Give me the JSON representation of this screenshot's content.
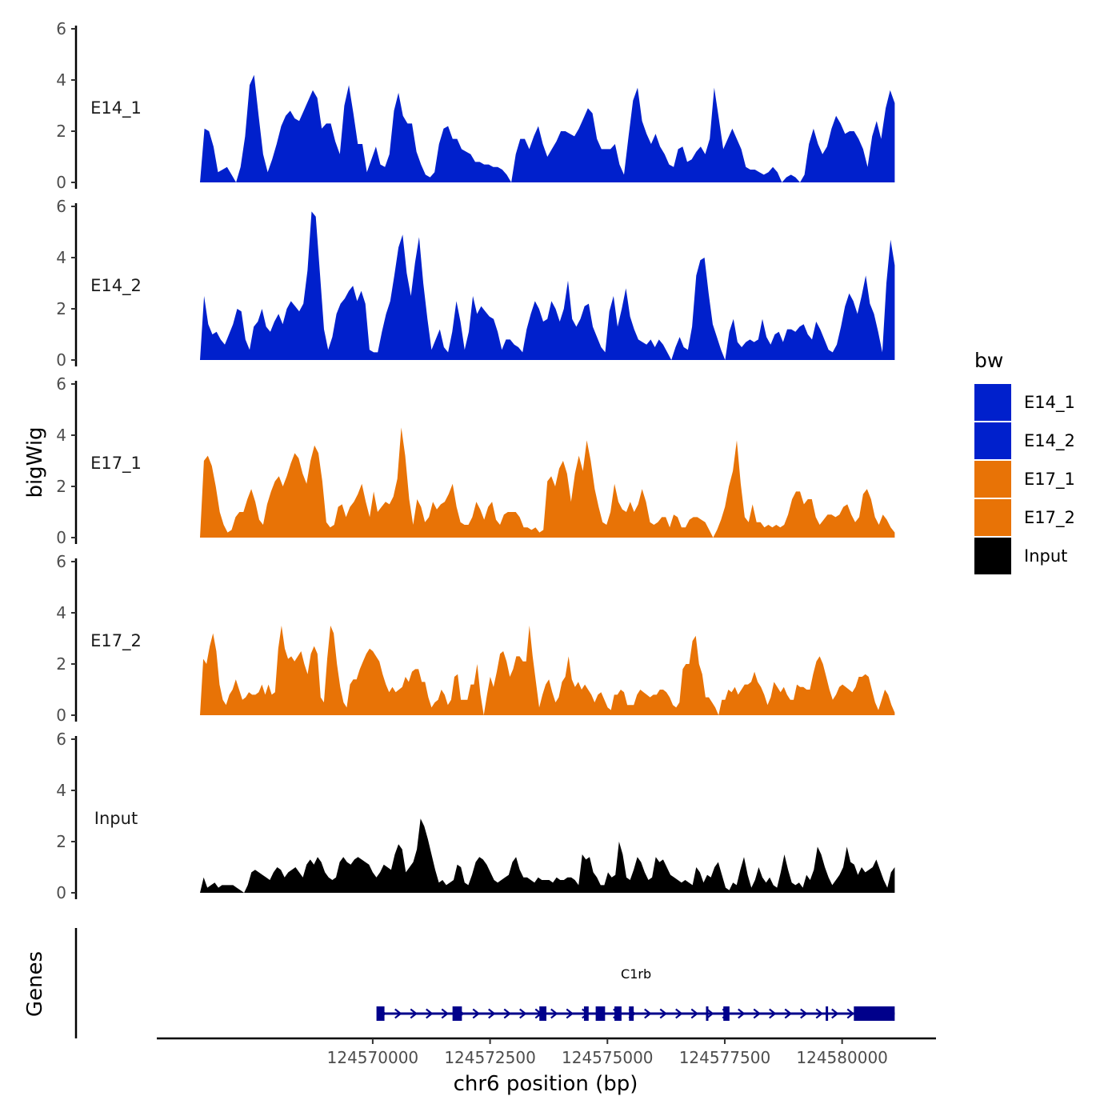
{
  "chart_data": {
    "type": "area",
    "subtype": "genome-browser coverage tracks",
    "chromosome": "chr6",
    "xlabel": "chr6 position (bp)",
    "ylabel": "bigWig",
    "genes_axis_label": "Genes",
    "xlim": [
      124565400,
      124582000
    ],
    "ylim": [
      0,
      6
    ],
    "yticks": [
      0,
      2,
      4,
      6
    ],
    "xticks": [
      124570000,
      124572500,
      124575000,
      124577500,
      124580000
    ],
    "xtick_labels": [
      "124570000",
      "124572500",
      "124575000",
      "124577500",
      "124580000"
    ],
    "x_start": 124566320,
    "x_end": 124581120,
    "legend": {
      "title": "bw",
      "position": "right",
      "entries": [
        {
          "name": "E14_1",
          "color": "#0020cc"
        },
        {
          "name": "E14_2",
          "color": "#0020cc"
        },
        {
          "name": "E17_1",
          "color": "#e87306"
        },
        {
          "name": "E17_2",
          "color": "#e87306"
        },
        {
          "name": "Input",
          "color": "#000000"
        }
      ]
    },
    "series": [
      {
        "name": "E14_1",
        "color": "#0020cc",
        "values": [
          0,
          2.1,
          2,
          1.4,
          0.4,
          0.5,
          0.6,
          0.3,
          0,
          0.6,
          1.8,
          3.8,
          4.2,
          2.6,
          1.1,
          0.4,
          0.9,
          1.5,
          2.2,
          2.6,
          2.8,
          2.5,
          2.4,
          2.8,
          3.2,
          3.6,
          3.3,
          2.1,
          2.3,
          2.3,
          1.6,
          1.1,
          3.0,
          3.8,
          2.7,
          1.5,
          1.5,
          0.4,
          0.9,
          1.4,
          0.7,
          0.6,
          1.1,
          2.8,
          3.5,
          2.6,
          2.3,
          2.3,
          1.2,
          0.7,
          0.3,
          0.2,
          0.4,
          1.5,
          2.1,
          2.2,
          1.7,
          1.7,
          1.3,
          1.2,
          1.1,
          0.8,
          0.8,
          0.7,
          0.7,
          0.6,
          0.6,
          0.5,
          0.3,
          0,
          1.1,
          1.7,
          1.7,
          1.3,
          1.8,
          2.2,
          1.5,
          1.0,
          1.3,
          1.6,
          2.0,
          2.0,
          1.9,
          1.8,
          2.1,
          2.5,
          2.9,
          2.7,
          1.7,
          1.3,
          1.3,
          1.3,
          1.5,
          0.7,
          0.3,
          1.8,
          3.2,
          3.7,
          2.4,
          1.9,
          1.5,
          1.9,
          1.4,
          1.1,
          0.7,
          0.6,
          1.3,
          1.4,
          0.8,
          0.9,
          1.2,
          1.4,
          1.1,
          1.7,
          3.7,
          2.5,
          1.3,
          1.7,
          2.1,
          1.7,
          1.3,
          0.6,
          0.5,
          0.5,
          0.4,
          0.3,
          0.4,
          0.6,
          0.4,
          0,
          0.2,
          0.3,
          0.2,
          0,
          0.3,
          1.5,
          2.1,
          1.5,
          1.1,
          1.4,
          2.1,
          2.6,
          2.3,
          1.9,
          2.0,
          2.0,
          1.7,
          1.3,
          0.6,
          1.8,
          2.4,
          1.7,
          2.9,
          3.6,
          3.1
        ]
      },
      {
        "name": "E14_2",
        "color": "#0020cc",
        "values": [
          0,
          2.5,
          1.4,
          1.0,
          1.1,
          0.8,
          0.6,
          1.0,
          1.4,
          2.0,
          1.9,
          0.8,
          0.4,
          1.3,
          1.5,
          2.0,
          1.3,
          1.1,
          1.5,
          1.8,
          1.4,
          2.0,
          2.3,
          2.1,
          1.9,
          2.2,
          3.5,
          5.8,
          5.6,
          3.4,
          1.2,
          0.4,
          0.9,
          1.8,
          2.2,
          2.4,
          2.7,
          2.9,
          2.3,
          2.7,
          2.2,
          0.4,
          0.3,
          0.3,
          1.1,
          1.8,
          2.3,
          3.3,
          4.4,
          4.9,
          3.4,
          2.5,
          3.8,
          4.8,
          3.0,
          1.6,
          0.4,
          0.8,
          1.2,
          0.5,
          0.3,
          1.1,
          2.3,
          1.5,
          0.4,
          1.1,
          2.5,
          1.8,
          2.1,
          1.9,
          1.7,
          1.6,
          1.1,
          0.4,
          0.8,
          0.8,
          0.6,
          0.5,
          0.3,
          1.2,
          1.8,
          2.3,
          2.0,
          1.5,
          1.6,
          2.3,
          2.0,
          1.5,
          2.0,
          3.1,
          1.6,
          1.3,
          1.6,
          2.1,
          2.2,
          1.3,
          0.9,
          0.5,
          0.3,
          1.9,
          2.5,
          1.3,
          2.0,
          2.8,
          1.7,
          1.2,
          0.8,
          0.7,
          0.6,
          0.8,
          0.5,
          0.8,
          0.6,
          0.3,
          0,
          0.5,
          0.9,
          0.5,
          0.4,
          1.3,
          3.3,
          3.9,
          4.0,
          2.6,
          1.4,
          0.9,
          0.4,
          0,
          1.1,
          1.6,
          0.7,
          0.5,
          0.7,
          0.8,
          0.7,
          0.8,
          1.6,
          0.9,
          0.6,
          1.0,
          1.1,
          0.7,
          1.2,
          1.2,
          1.1,
          1.3,
          1.4,
          1.0,
          0.8,
          1.5,
          1.2,
          0.8,
          0.4,
          0.3,
          0.6,
          1.3,
          2.1,
          2.6,
          2.3,
          1.8,
          2.5,
          3.3,
          2.2,
          1.8,
          1.1,
          0.3,
          3.0,
          4.7,
          3.7
        ]
      },
      {
        "name": "E17_1",
        "color": "#e87306",
        "values": [
          0,
          3.0,
          3.2,
          2.8,
          2.0,
          1.0,
          0.5,
          0.2,
          0.3,
          0.8,
          1.0,
          1.0,
          1.5,
          1.9,
          1.4,
          0.7,
          0.5,
          1.3,
          1.8,
          2.2,
          2.4,
          2.0,
          2.4,
          2.9,
          3.3,
          3.1,
          2.5,
          2.1,
          3.0,
          3.6,
          3.3,
          2.2,
          0.6,
          0.4,
          0.5,
          1.2,
          1.3,
          0.8,
          1.2,
          1.4,
          1.7,
          2.1,
          1.4,
          0.8,
          1.8,
          1.0,
          1.2,
          1.4,
          1.3,
          1.6,
          2.3,
          4.3,
          3.2,
          1.5,
          0.5,
          1.5,
          1.2,
          0.6,
          0.8,
          1.4,
          1.1,
          1.3,
          1.4,
          1.7,
          2.1,
          1.2,
          0.6,
          0.5,
          0.5,
          0.8,
          1.4,
          1.1,
          0.7,
          1.2,
          1.4,
          0.7,
          0.5,
          0.9,
          1.0,
          1.0,
          1.0,
          0.8,
          0.4,
          0.4,
          0.3,
          0.4,
          0.2,
          0.3,
          2.2,
          2.4,
          2.0,
          2.7,
          3.0,
          2.5,
          1.4,
          2.5,
          3.2,
          2.6,
          3.8,
          3.0,
          1.9,
          1.2,
          0.6,
          0.5,
          1.0,
          2.1,
          1.4,
          1.1,
          1.0,
          1.4,
          1.0,
          1.3,
          1.9,
          1.4,
          0.6,
          0.5,
          0.6,
          0.8,
          0.8,
          0.4,
          0.9,
          0.8,
          0.4,
          0.4,
          0.7,
          0.8,
          0.8,
          0.7,
          0.6,
          0.3,
          0,
          0.3,
          0.7,
          1.2,
          2.0,
          2.6,
          3.8,
          2.1,
          0.8,
          0.6,
          1.3,
          0.6,
          0.6,
          0.4,
          0.5,
          0.4,
          0.5,
          0.4,
          0.5,
          0.9,
          1.5,
          1.8,
          1.8,
          1.3,
          1.5,
          1.5,
          0.8,
          0.5,
          0.7,
          0.9,
          0.9,
          0.8,
          0.9,
          1.2,
          1.3,
          0.9,
          0.6,
          0.8,
          1.7,
          1.9,
          1.5,
          0.8,
          0.5,
          0.9,
          0.7,
          0.4,
          0.2
        ]
      },
      {
        "name": "E17_2",
        "color": "#e87306",
        "values": [
          0,
          2.2,
          2.0,
          2.7,
          3.2,
          2.5,
          1.2,
          0.6,
          0.4,
          0.8,
          1.0,
          1.4,
          1.0,
          0.6,
          0.7,
          0.9,
          0.8,
          0.8,
          0.9,
          1.2,
          0.8,
          1.2,
          0.8,
          0.9,
          2.6,
          3.5,
          2.6,
          2.2,
          2.3,
          2.1,
          2.3,
          2.5,
          2.0,
          1.6,
          2.4,
          2.7,
          2.4,
          0.7,
          0.5,
          2.2,
          3.5,
          3.2,
          2.0,
          1.1,
          0.5,
          0.3,
          1.2,
          1.4,
          1.4,
          1.8,
          2.1,
          2.4,
          2.6,
          2.5,
          2.3,
          2.1,
          1.6,
          1.2,
          0.9,
          1.1,
          0.9,
          1.0,
          1.1,
          1.5,
          1.3,
          1.7,
          1.8,
          1.8,
          1.3,
          1.3,
          0.7,
          0.3,
          0.5,
          0.6,
          1.0,
          0.8,
          0.4,
          0.6,
          1.5,
          1.6,
          0.6,
          0.6,
          0.6,
          1.2,
          1.2,
          2.0,
          0.8,
          0,
          0.8,
          1.5,
          1.1,
          1.7,
          2.4,
          2.5,
          2.1,
          1.5,
          1.8,
          2.3,
          2.3,
          2.1,
          2.1,
          3.5,
          2.3,
          1.3,
          0.3,
          0.8,
          1.2,
          1.4,
          0.9,
          0.5,
          0.7,
          1.3,
          1.5,
          2.3,
          1.4,
          1.1,
          1.3,
          1.0,
          1.2,
          1.0,
          0.8,
          0.5,
          0.8,
          0.9,
          0.6,
          0.3,
          0.2,
          0.8,
          0.8,
          1.0,
          0.9,
          0.4,
          0.4,
          0.4,
          0.8,
          1.0,
          0.9,
          0.8,
          0.7,
          0.8,
          0.8,
          1.0,
          1.0,
          0.9,
          0.7,
          0.4,
          0.3,
          0.5,
          1.8,
          2.0,
          2.0,
          2.9,
          3.1,
          2.0,
          1.6,
          0.7,
          0.7,
          0.5,
          0.3,
          0,
          0.6,
          0.6,
          1.0,
          0.9,
          1.1,
          0.8,
          1.0,
          1.2,
          1.2,
          1.3,
          1.7,
          1.3,
          1.1,
          0.8,
          0.4,
          0.7,
          1.3,
          1.1,
          0.9,
          1.1,
          0.8,
          0.6,
          0.6,
          1.2,
          1.1,
          1.1,
          1.0,
          1.0,
          1.6,
          2.1,
          2.3,
          2.0,
          1.5,
          1.0,
          0.6,
          0.8,
          1.1,
          1.2,
          1.1,
          1.0,
          0.9,
          1.1,
          1.5,
          1.5,
          1.6,
          1.5,
          1.0,
          0.5,
          0.2,
          0.6,
          1.0,
          0.8,
          0.4,
          0.1
        ]
      },
      {
        "name": "Input",
        "color": "#000000",
        "values": [
          0,
          0.6,
          0.2,
          0.3,
          0.4,
          0.2,
          0.3,
          0.3,
          0.3,
          0.3,
          0.2,
          0.1,
          0,
          0.3,
          0.8,
          0.9,
          0.8,
          0.7,
          0.6,
          0.5,
          0.8,
          1.0,
          0.9,
          0.6,
          0.8,
          0.9,
          1.0,
          0.8,
          0.6,
          1.1,
          1.3,
          1.1,
          1.4,
          1.2,
          0.8,
          0.6,
          0.5,
          0.6,
          1.2,
          1.4,
          1.2,
          1.1,
          1.3,
          1.4,
          1.3,
          1.2,
          1.1,
          0.8,
          0.6,
          0.8,
          1.1,
          1.0,
          0.9,
          1.5,
          1.9,
          1.7,
          0.8,
          1.0,
          1.2,
          1.7,
          2.9,
          2.6,
          2.1,
          1.5,
          0.9,
          0.4,
          0.5,
          0.3,
          0.4,
          0.5,
          1.1,
          1.0,
          0.4,
          0.3,
          0.7,
          1.2,
          1.4,
          1.3,
          1.1,
          0.8,
          0.5,
          0.4,
          0.5,
          0.6,
          0.7,
          1.2,
          1.4,
          0.9,
          0.6,
          0.6,
          0.5,
          0.4,
          0.6,
          0.5,
          0.5,
          0.5,
          0.4,
          0.6,
          0.5,
          0.5,
          0.6,
          0.6,
          0.5,
          0.3,
          1.5,
          1.3,
          1.4,
          0.8,
          0.6,
          0.3,
          0.3,
          0.8,
          0.6,
          0.7,
          2.0,
          1.5,
          0.6,
          0.5,
          0.9,
          1.4,
          1.2,
          0.8,
          0.5,
          0.6,
          1.4,
          1.2,
          1.3,
          1.0,
          0.7,
          0.6,
          0.5,
          0.4,
          0.5,
          0.4,
          0.3,
          1.0,
          0.8,
          0.4,
          0.7,
          0.6,
          1.0,
          1.2,
          0.7,
          0.2,
          0.1,
          0.4,
          0.3,
          0.9,
          1.4,
          0.7,
          0.2,
          0.5,
          1.0,
          0.6,
          0.4,
          0.6,
          0.3,
          0.2,
          0.8,
          1.5,
          0.9,
          0.4,
          0.3,
          0.4,
          0.2,
          0.7,
          0.5,
          0.9,
          1.8,
          1.5,
          1.0,
          0.6,
          0.3,
          0.5,
          0.7,
          1.0,
          1.8,
          1.2,
          1.1,
          0.7,
          1.0,
          0.8,
          0.9,
          1.0,
          1.3,
          0.9,
          0.5,
          0.2,
          0.8,
          1.0
        ]
      }
    ],
    "genes": [
      {
        "name": "C1rb",
        "color": "#00008b",
        "strand": "+",
        "start": 124570100,
        "end": 124581120,
        "exons": [
          [
            124570080,
            124570250
          ],
          [
            124571700,
            124571900
          ],
          [
            124573550,
            124573700
          ],
          [
            124574500,
            124574600
          ],
          [
            124574750,
            124574950
          ],
          [
            124575150,
            124575300
          ],
          [
            124575460,
            124575560
          ],
          [
            124577100,
            124577150
          ],
          [
            124577470,
            124577600
          ],
          [
            124579650,
            124579700
          ],
          [
            124580250,
            124581120
          ]
        ]
      }
    ]
  }
}
